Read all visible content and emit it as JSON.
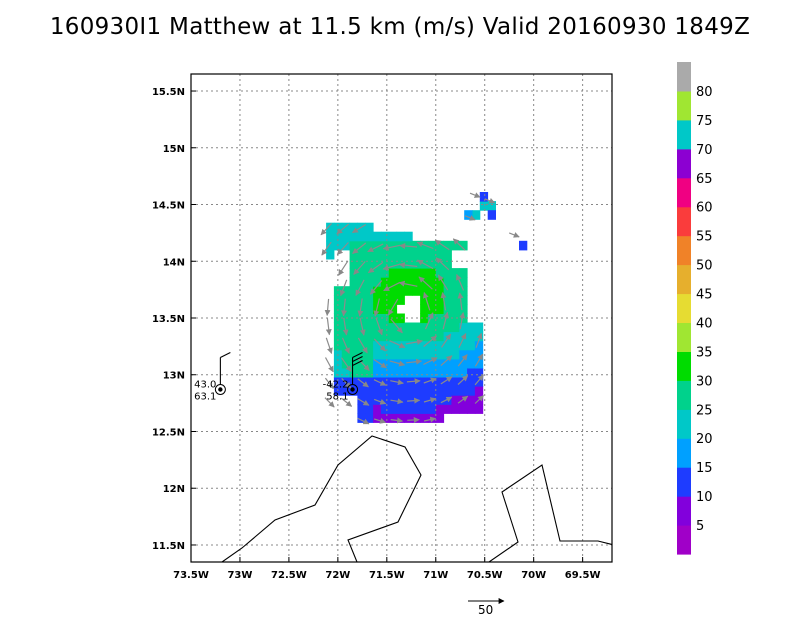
{
  "title": "160930I1 Matthew at 11.5 km (m/s) Valid 20160930 1849Z",
  "chart_data": {
    "type": "heatmap",
    "title": "160930I1 Matthew at 11.5 km (m/s) Valid 20160930 1849Z",
    "x_axis": {
      "range": [
        -73.5,
        -69.2
      ],
      "ticks": [
        -73.5,
        -73,
        -72.5,
        -72,
        -71.5,
        -71,
        -70.5,
        -70,
        -69.5
      ],
      "tick_labels": [
        "73.5W",
        "73W",
        "72.5W",
        "72W",
        "71.5W",
        "71W",
        "70.5W",
        "70W",
        "69.5W"
      ]
    },
    "y_axis": {
      "range": [
        11.35,
        15.65
      ],
      "ticks": [
        11.5,
        12,
        12.5,
        13,
        13.5,
        14,
        14.5,
        15,
        15.5
      ],
      "tick_labels": [
        "11.5N",
        "12N",
        "12.5N",
        "13N",
        "13.5N",
        "14N",
        "14.5N",
        "15N",
        "15.5N"
      ]
    },
    "grid": true,
    "colorbar": {
      "labels": [
        "5",
        "10",
        "15",
        "20",
        "25",
        "30",
        "35",
        "40",
        "45",
        "50",
        "55",
        "60",
        "65",
        "70",
        "75",
        "80"
      ],
      "colors": [
        "#a000c8",
        "#8200dc",
        "#1e3cff",
        "#00a0ff",
        "#00c8c8",
        "#00d28c",
        "#00dc00",
        "#a0e632",
        "#e6dc32",
        "#e6af2d",
        "#f08228",
        "#fa3c3c",
        "#f00082",
        "#8c00d2",
        "#00c8c8",
        "#a0e632",
        "#aaaaaa"
      ]
    },
    "wind_field": {
      "center": {
        "lon": -71.3,
        "lat": 13.55
      },
      "eye_radius_deg": 0.12,
      "max_wind": 32
    },
    "stations": [
      {
        "lon": -73.2,
        "lat": 12.87,
        "value_top": "43.0",
        "value_bottom": "63.1"
      },
      {
        "lon": -71.85,
        "lat": 12.87,
        "value_top": "-42.2",
        "value_bottom": "58.1"
      }
    ],
    "reference_vector": {
      "value": 50,
      "label": "50"
    }
  }
}
